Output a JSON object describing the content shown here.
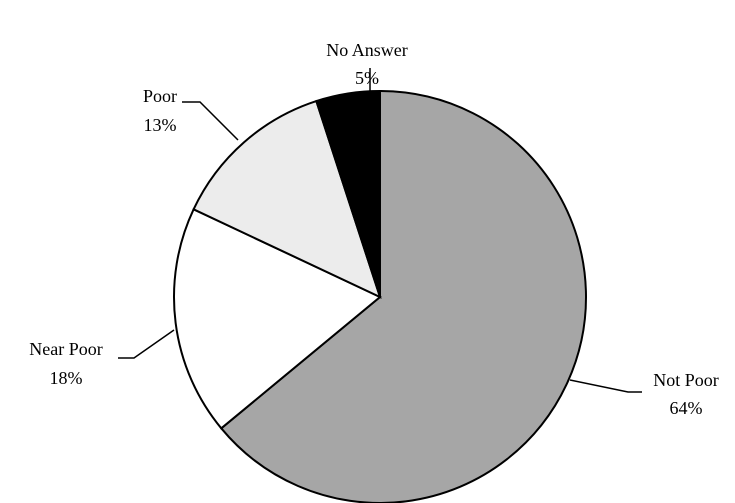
{
  "chart_data": {
    "type": "pie",
    "categories": [
      "Not Poor",
      "Near Poor",
      "Poor",
      "No Answer"
    ],
    "values": [
      64,
      18,
      13,
      5
    ],
    "value_labels": [
      "64%",
      "18%",
      "13%",
      "5%"
    ],
    "colors": [
      "#a6a6a6",
      "#ffffff",
      "#ececec",
      "#000000"
    ]
  }
}
